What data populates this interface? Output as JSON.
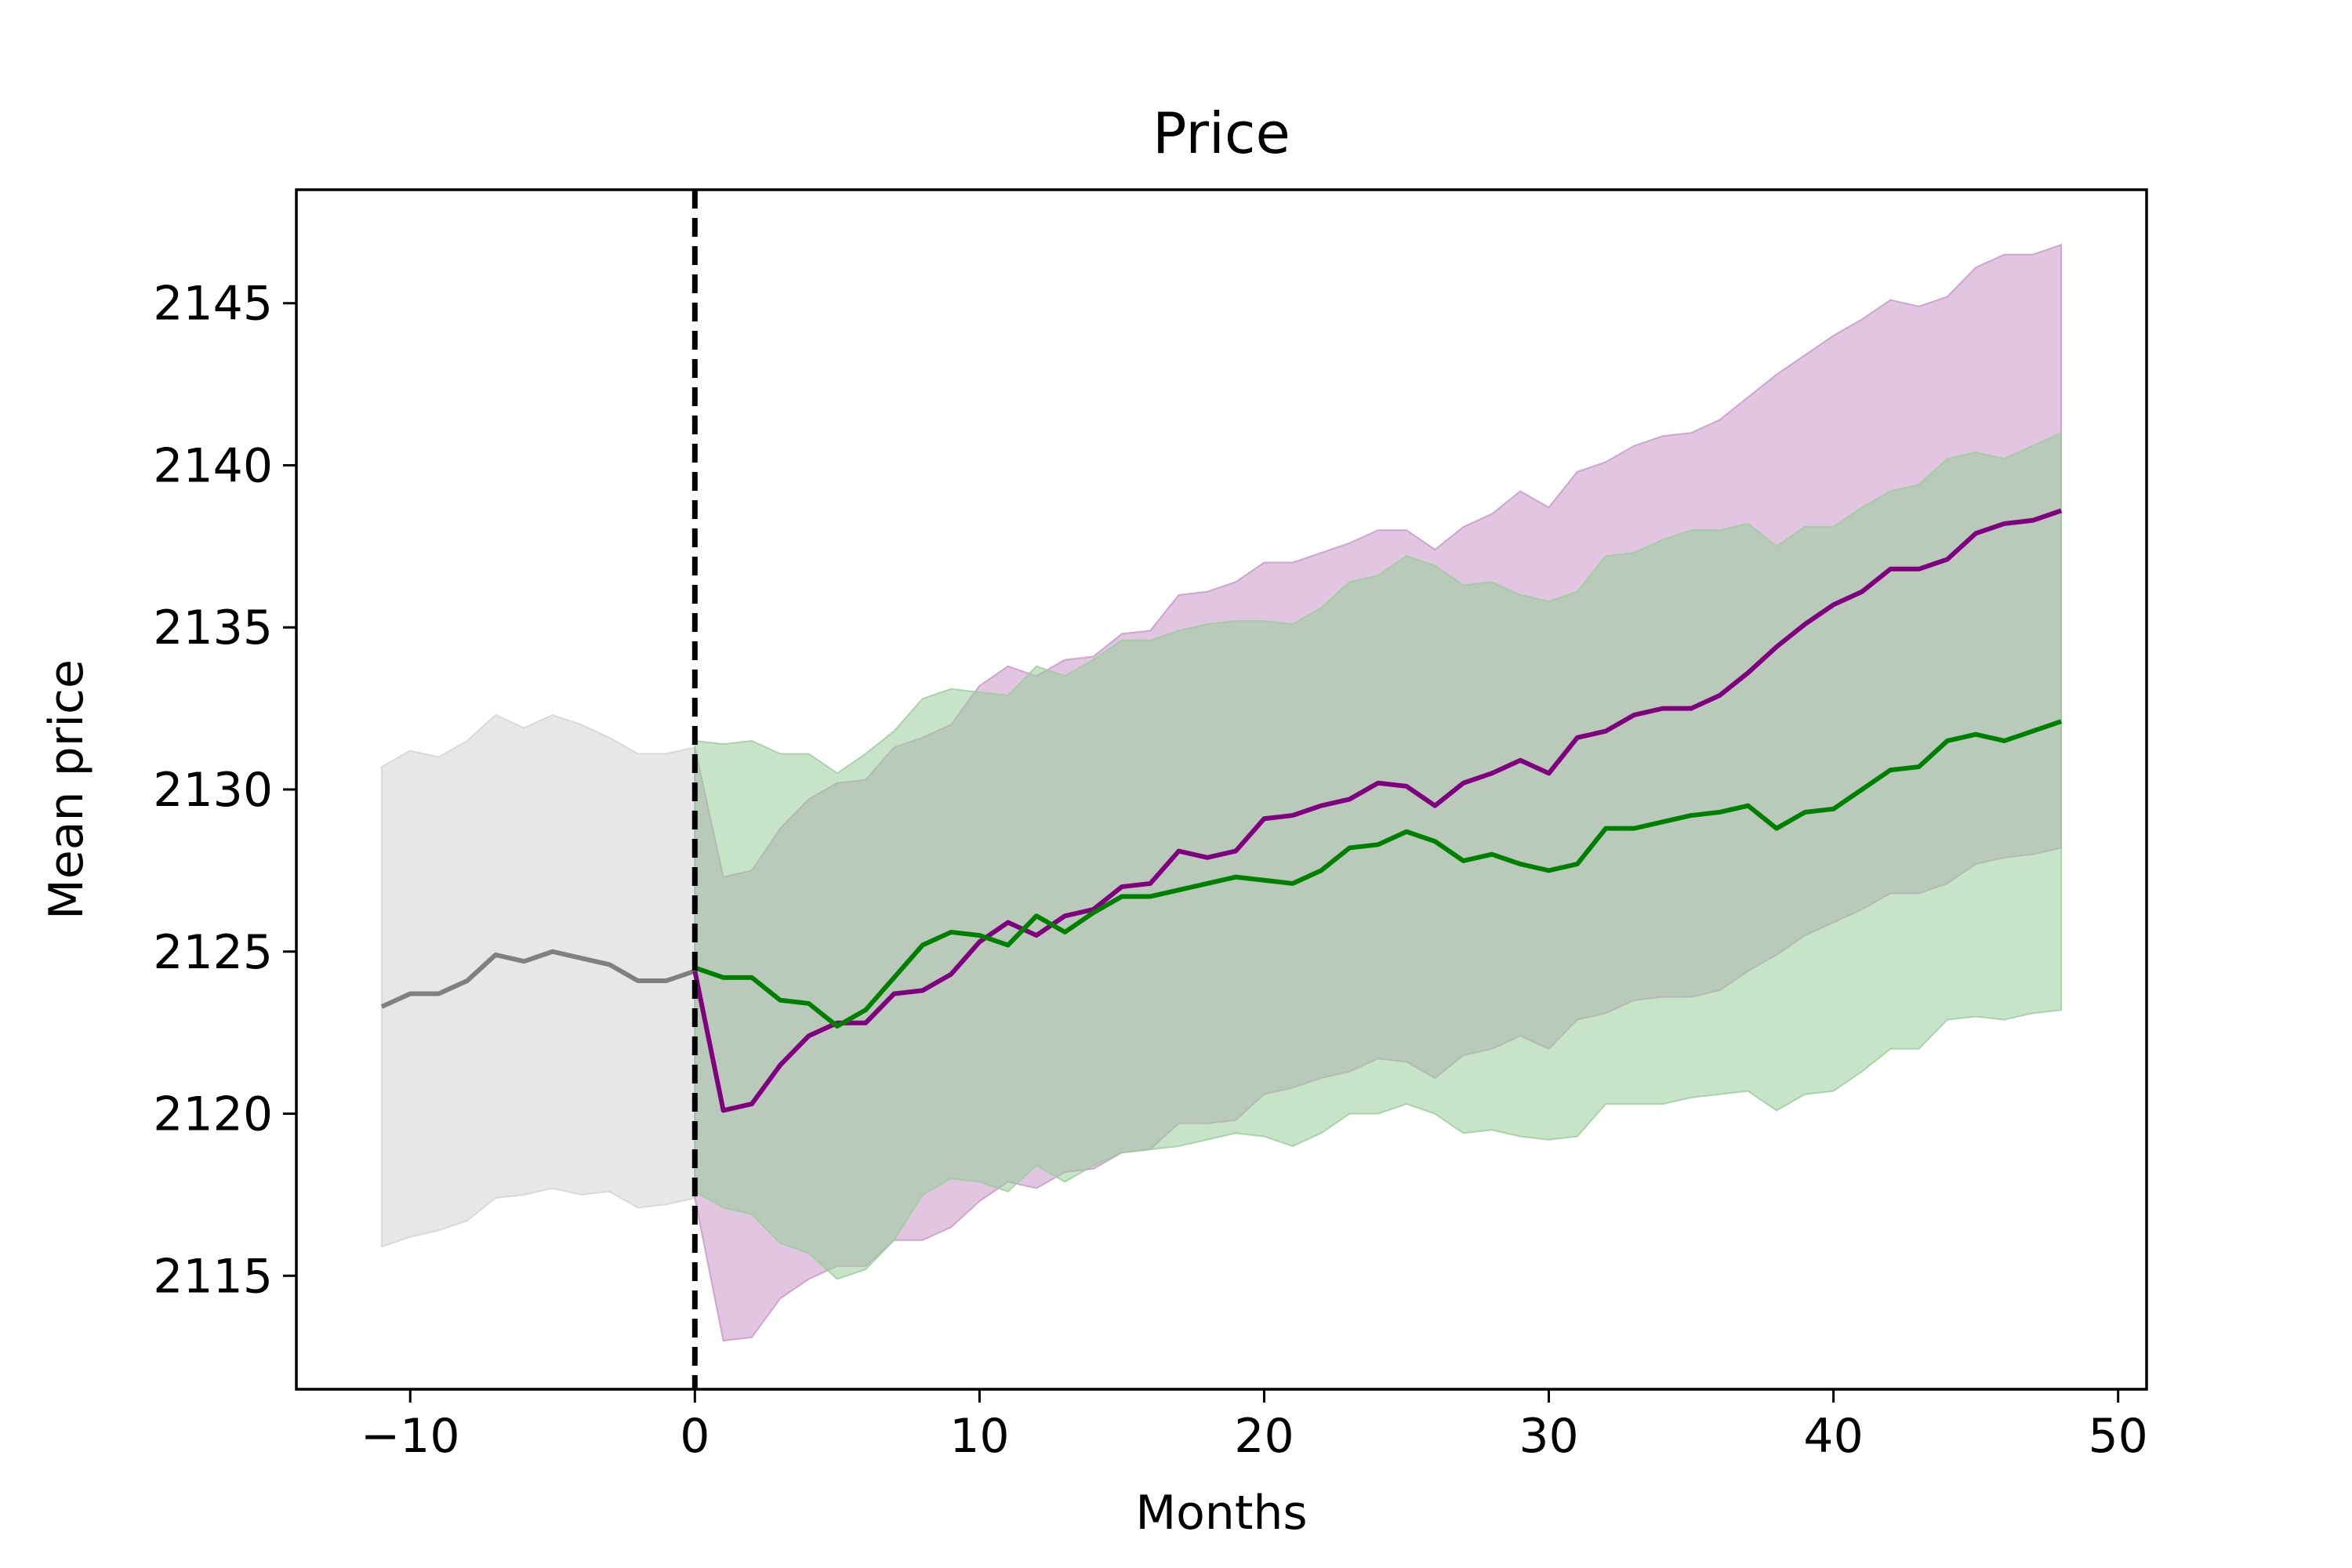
{
  "chart_data": {
    "type": "line",
    "title": "Price",
    "xlabel": "Months",
    "ylabel": "Mean price",
    "xlim": [
      -14,
      51
    ],
    "ylim": [
      2111.5,
      2148.5
    ],
    "x_ticks": [
      -10,
      0,
      10,
      20,
      30,
      40,
      50
    ],
    "x_tick_labels": [
      "−10",
      "0",
      "10",
      "20",
      "30",
      "40",
      "50"
    ],
    "y_ticks": [
      2115,
      2120,
      2125,
      2130,
      2135,
      2140,
      2145
    ],
    "y_tick_labels": [
      "2115",
      "2120",
      "2125",
      "2130",
      "2135",
      "2140",
      "2145"
    ],
    "grid": false,
    "legend": "none",
    "vline": {
      "x": 0,
      "style": "dashed",
      "color": "#000000"
    },
    "colors": {
      "pre": "#808080",
      "pre_band": "#d3d3d3",
      "purple": "#800080",
      "purple_band": "#c896c8",
      "green": "#008000",
      "green_band": "#9acd9a"
    },
    "series": [
      {
        "color_key": "pre",
        "x": [
          -11,
          -10,
          -9,
          -8,
          -7,
          -6,
          -5,
          -4,
          -3,
          -2,
          -1,
          0
        ],
        "mean": [
          2123.3,
          2123.7,
          2123.7,
          2124.1,
          2124.9,
          2124.7,
          2125.0,
          2124.8,
          2124.6,
          2124.1,
          2124.1,
          2124.4
        ],
        "lower": [
          2115.9,
          2116.2,
          2116.4,
          2116.7,
          2117.4,
          2117.5,
          2117.7,
          2117.5,
          2117.6,
          2117.1,
          2117.2,
          2117.4
        ],
        "upper": [
          2130.7,
          2131.2,
          2131.0,
          2131.5,
          2132.3,
          2131.9,
          2132.3,
          2132.0,
          2131.6,
          2131.1,
          2131.1,
          2131.3
        ]
      },
      {
        "color_key": "purple",
        "x": [
          0,
          1,
          2,
          3,
          4,
          5,
          6,
          7,
          8,
          9,
          10,
          11,
          12,
          13,
          14,
          15,
          16,
          17,
          18,
          19,
          20,
          21,
          22,
          23,
          24,
          25,
          26,
          27,
          28,
          29,
          30,
          31,
          32,
          33,
          34,
          35,
          36,
          37,
          38,
          39,
          40,
          41,
          42,
          43,
          44,
          45,
          46,
          47,
          48
        ],
        "mean": [
          2124.4,
          2120.1,
          2120.3,
          2121.5,
          2122.4,
          2122.8,
          2122.8,
          2123.7,
          2123.8,
          2124.3,
          2125.3,
          2125.9,
          2125.5,
          2126.1,
          2126.3,
          2127.0,
          2127.1,
          2128.1,
          2127.9,
          2128.1,
          2129.1,
          2129.2,
          2129.5,
          2129.7,
          2130.2,
          2130.1,
          2129.5,
          2130.2,
          2130.5,
          2130.9,
          2130.5,
          2131.6,
          2131.8,
          2132.3,
          2132.5,
          2132.5,
          2132.9,
          2133.6,
          2134.4,
          2135.1,
          2135.7,
          2136.1,
          2136.8,
          2136.8,
          2137.1,
          2137.9,
          2138.2,
          2138.3,
          2138.6
        ],
        "lower": [
          2117.4,
          2113.0,
          2113.1,
          2114.3,
          2114.9,
          2115.3,
          2115.3,
          2116.1,
          2116.1,
          2116.5,
          2117.3,
          2117.9,
          2117.7,
          2118.2,
          2118.3,
          2118.8,
          2118.9,
          2119.7,
          2119.7,
          2119.8,
          2120.6,
          2120.8,
          2121.1,
          2121.3,
          2121.7,
          2121.6,
          2121.1,
          2121.8,
          2122.0,
          2122.4,
          2122.0,
          2122.9,
          2123.1,
          2123.5,
          2123.6,
          2123.6,
          2123.8,
          2124.4,
          2124.9,
          2125.5,
          2125.9,
          2126.3,
          2126.8,
          2126.8,
          2127.1,
          2127.7,
          2127.9,
          2128.0,
          2128.2
        ],
        "upper": [
          2131.3,
          2127.3,
          2127.5,
          2128.8,
          2129.7,
          2130.2,
          2130.3,
          2131.3,
          2131.6,
          2132.0,
          2133.2,
          2133.8,
          2133.5,
          2134.0,
          2134.1,
          2134.8,
          2134.9,
          2136.0,
          2136.1,
          2136.4,
          2137.0,
          2137.0,
          2137.3,
          2137.6,
          2138.0,
          2138.0,
          2137.4,
          2138.1,
          2138.5,
          2139.2,
          2138.7,
          2139.8,
          2140.1,
          2140.6,
          2140.9,
          2141.0,
          2141.4,
          2142.1,
          2142.8,
          2143.4,
          2144.0,
          2144.5,
          2145.1,
          2144.9,
          2145.2,
          2146.1,
          2146.5,
          2146.5,
          2146.8
        ]
      },
      {
        "color_key": "green",
        "x": [
          0,
          1,
          2,
          3,
          4,
          5,
          6,
          7,
          8,
          9,
          10,
          11,
          12,
          13,
          14,
          15,
          16,
          17,
          18,
          19,
          20,
          21,
          22,
          23,
          24,
          25,
          26,
          27,
          28,
          29,
          30,
          31,
          32,
          33,
          34,
          35,
          36,
          37,
          38,
          39,
          40,
          41,
          42,
          43,
          44,
          45,
          46,
          47,
          48
        ],
        "mean": [
          2124.5,
          2124.2,
          2124.2,
          2123.5,
          2123.4,
          2122.7,
          2123.2,
          2124.2,
          2125.2,
          2125.6,
          2125.5,
          2125.2,
          2126.1,
          2125.6,
          2126.2,
          2126.7,
          2126.7,
          2126.9,
          2127.1,
          2127.3,
          2127.2,
          2127.1,
          2127.5,
          2128.2,
          2128.3,
          2128.7,
          2128.4,
          2127.8,
          2128.0,
          2127.7,
          2127.5,
          2127.7,
          2128.8,
          2128.8,
          2129.0,
          2129.2,
          2129.3,
          2129.5,
          2128.8,
          2129.3,
          2129.4,
          2130.0,
          2130.6,
          2130.7,
          2131.5,
          2131.7,
          2131.5,
          2131.8,
          2132.1
        ],
        "lower": [
          2117.6,
          2117.1,
          2116.9,
          2116.0,
          2115.7,
          2114.9,
          2115.2,
          2116.1,
          2117.5,
          2118.0,
          2117.9,
          2117.6,
          2118.4,
          2117.9,
          2118.4,
          2118.8,
          2118.9,
          2119.0,
          2119.2,
          2119.4,
          2119.3,
          2119.0,
          2119.4,
          2120.0,
          2120.0,
          2120.3,
          2120.0,
          2119.4,
          2119.5,
          2119.3,
          2119.2,
          2119.3,
          2120.3,
          2120.3,
          2120.3,
          2120.5,
          2120.6,
          2120.7,
          2120.1,
          2120.6,
          2120.7,
          2121.3,
          2122.0,
          2122.0,
          2122.9,
          2123.0,
          2122.9,
          2123.1,
          2123.2
        ],
        "upper": [
          2131.5,
          2131.4,
          2131.5,
          2131.1,
          2131.1,
          2130.5,
          2131.1,
          2131.8,
          2132.8,
          2133.1,
          2133.0,
          2132.9,
          2133.8,
          2133.5,
          2134.0,
          2134.6,
          2134.6,
          2134.9,
          2135.1,
          2135.2,
          2135.2,
          2135.1,
          2135.6,
          2136.4,
          2136.6,
          2137.2,
          2136.9,
          2136.3,
          2136.4,
          2136.0,
          2135.8,
          2136.1,
          2137.2,
          2137.3,
          2137.7,
          2138.0,
          2138.0,
          2138.2,
          2137.5,
          2138.1,
          2138.1,
          2138.7,
          2139.2,
          2139.4,
          2140.2,
          2140.4,
          2140.2,
          2140.6,
          2141.0
        ]
      }
    ]
  }
}
